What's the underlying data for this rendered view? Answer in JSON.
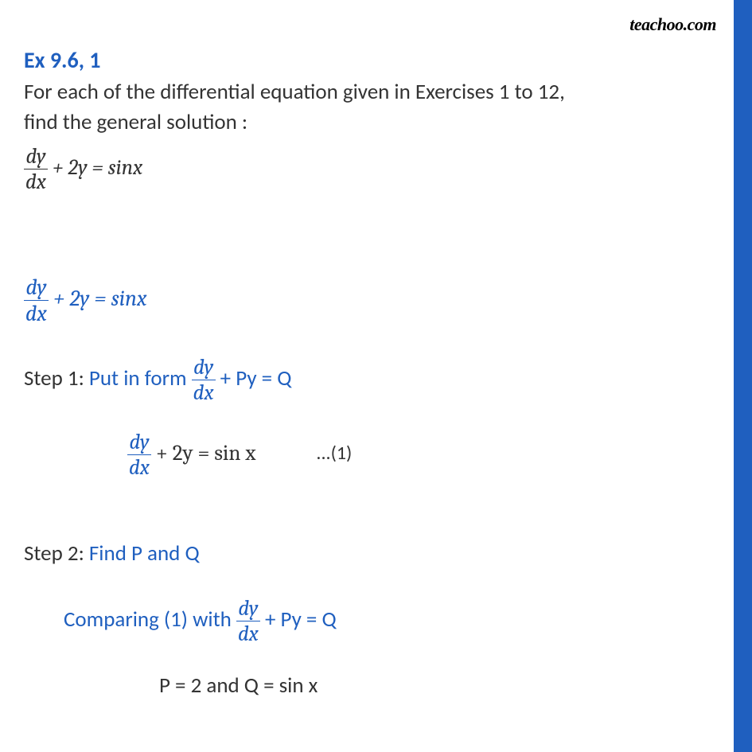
{
  "watermark": "teachoo.com",
  "colors": {
    "accent": "#1f5fbf",
    "text": "#333333",
    "bg": "#ffffff"
  },
  "title": "Ex 9.6, 1",
  "problem_line1": "For each of the differential equation given in Exercises 1 to 12,",
  "problem_line2": "find the general solution :",
  "equation_main_pre": "",
  "frac_num": "dy",
  "frac_den": "dx",
  "plus2y": " + 2y = sinx",
  "step1_label": "Step 1: ",
  "step1_desc_pre": "Put in form ",
  "step1_desc_post": " + Py = Q",
  "eq1_post": " + 2y = sin x",
  "eq1_marker": "...(1)",
  "step2_label": "Step 2: ",
  "step2_desc": "Find P and Q",
  "comparing_pre": "Comparing (1) with ",
  "comparing_post": " + Py = Q",
  "pq_result": "P = 2 and Q = sin x"
}
